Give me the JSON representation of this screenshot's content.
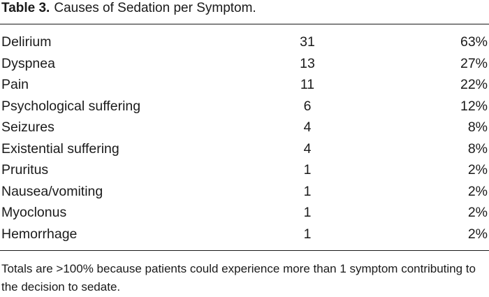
{
  "table": {
    "label": "Table 3.",
    "caption": "Causes of Sedation per Symptom.",
    "rows": [
      [
        "Delirium",
        "31",
        "63%"
      ],
      [
        "Dyspnea",
        "13",
        "27%"
      ],
      [
        "Pain",
        "11",
        "22%"
      ],
      [
        "Psychological suffering",
        "6",
        "12%"
      ],
      [
        "Seizures",
        "4",
        "8%"
      ],
      [
        "Existential suffering",
        "4",
        "8%"
      ],
      [
        "Pruritus",
        "1",
        "2%"
      ],
      [
        "Nausea/vomiting",
        "1",
        "2%"
      ],
      [
        "Myoclonus",
        "1",
        "2%"
      ],
      [
        "Hemorrhage",
        "1",
        "2%"
      ]
    ],
    "footnote": "Totals are >100% because patients could experience more than 1 symptom contributing to the decision to sedate."
  }
}
